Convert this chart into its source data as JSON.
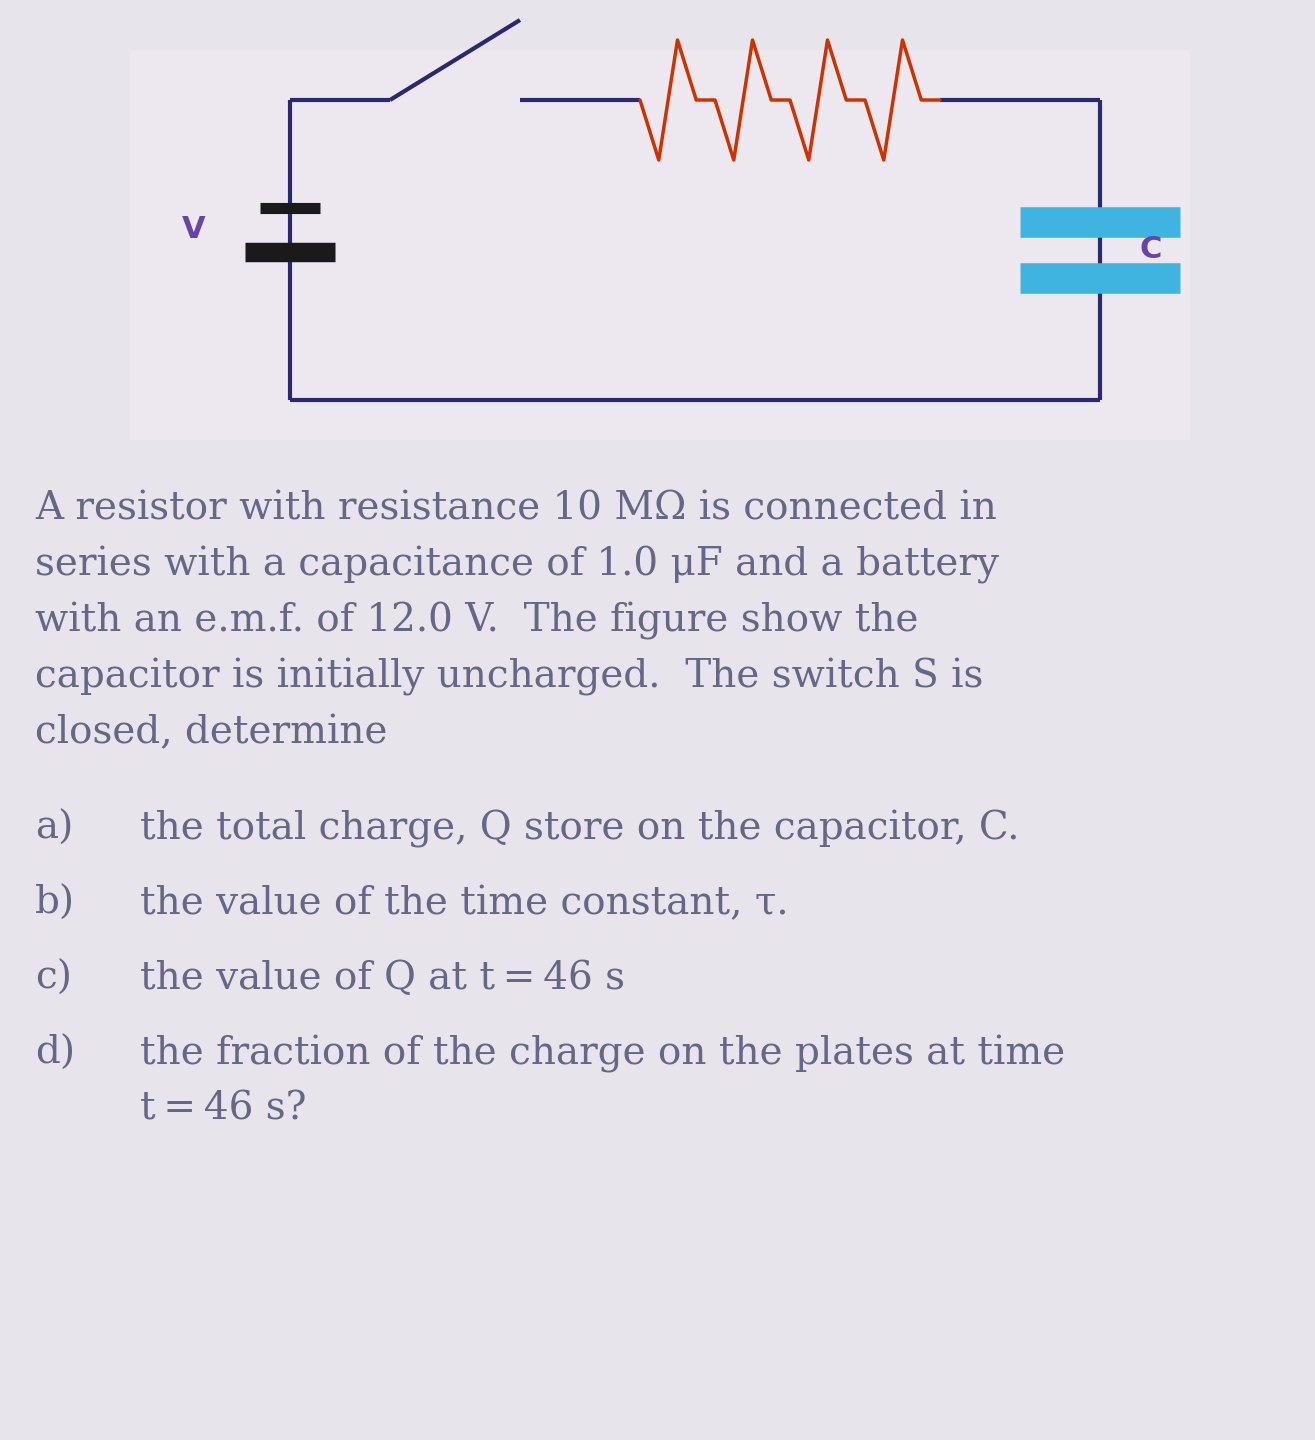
{
  "bg_color": "#e8e4ec",
  "circuit_bg": "#ede8f0",
  "wire_color": "#2a2870",
  "resistor_color": "#cc3300",
  "capacitor_color": "#40b4e0",
  "battery_color": "#1a1a1a",
  "label_color": "#6644aa",
  "text_color": "#666688",
  "paragraph_lines": [
    "A resistor with resistance 10 MΩ is connected in",
    "series with a capacitance of 1.0 μF and a battery",
    "with an e.m.f. of 12.0 V.  The figure show the",
    "capacitor is initially uncharged.  The switch S is",
    "closed, determine"
  ],
  "items": [
    {
      "label": "a)",
      "text": "the total charge, Q store on the capacitor, C."
    },
    {
      "label": "b)",
      "text": "the value of the time constant, τ."
    },
    {
      "label": "c)",
      "text": "the value of Q at t = 46 s"
    },
    {
      "label": "d)",
      "text1": "the fraction of the charge on the plates at time",
      "text2": "t = 46 s?"
    }
  ],
  "font_size_para": 28,
  "font_size_items": 28
}
